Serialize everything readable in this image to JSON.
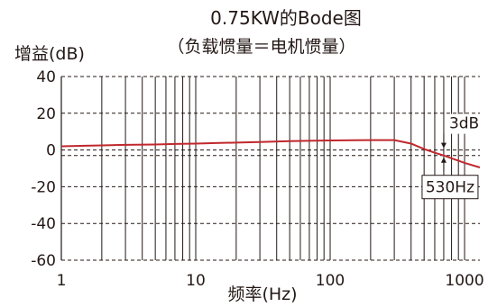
{
  "chart_data": {
    "type": "line",
    "title": "0.75KW的Bode图",
    "subtitle": "（负载惯量＝电机惯量）",
    "xlabel": "频率(Hz)",
    "ylabel": "增益(dB)",
    "xscale": "log",
    "xlim": [
      1,
      1300
    ],
    "ylim": [
      -60,
      40
    ],
    "x_ticks": [
      1,
      10,
      100,
      1000
    ],
    "x_tick_labels": [
      "1",
      "10",
      "100",
      "1000"
    ],
    "y_ticks": [
      40,
      20,
      0,
      -20,
      -40,
      -60
    ],
    "y_tick_labels": [
      "40",
      "20",
      "0",
      "-20",
      "-40",
      "-60"
    ],
    "grid": "vertical solid lines and horizontal dashed lines",
    "series": [
      {
        "color": "#c0282d",
        "x": [
          1,
          1.5,
          2,
          3,
          5,
          7,
          10,
          15,
          20,
          30,
          50,
          70,
          100,
          150,
          200,
          300,
          400,
          500,
          600,
          700,
          800,
          1000,
          1300
        ],
        "y": [
          2,
          2.3,
          2.5,
          2.8,
          3.0,
          3.3,
          3.5,
          3.8,
          4.0,
          4.3,
          4.8,
          5.0,
          5.2,
          5.3,
          5.4,
          5.4,
          3.5,
          0.5,
          -1.5,
          -3.0,
          -4.5,
          -7.0,
          -9.5
        ]
      }
    ],
    "annotations": {
      "minus_3db_label": "3dB",
      "cutoff_label": "530Hz",
      "cutoff_x": 700
    }
  }
}
